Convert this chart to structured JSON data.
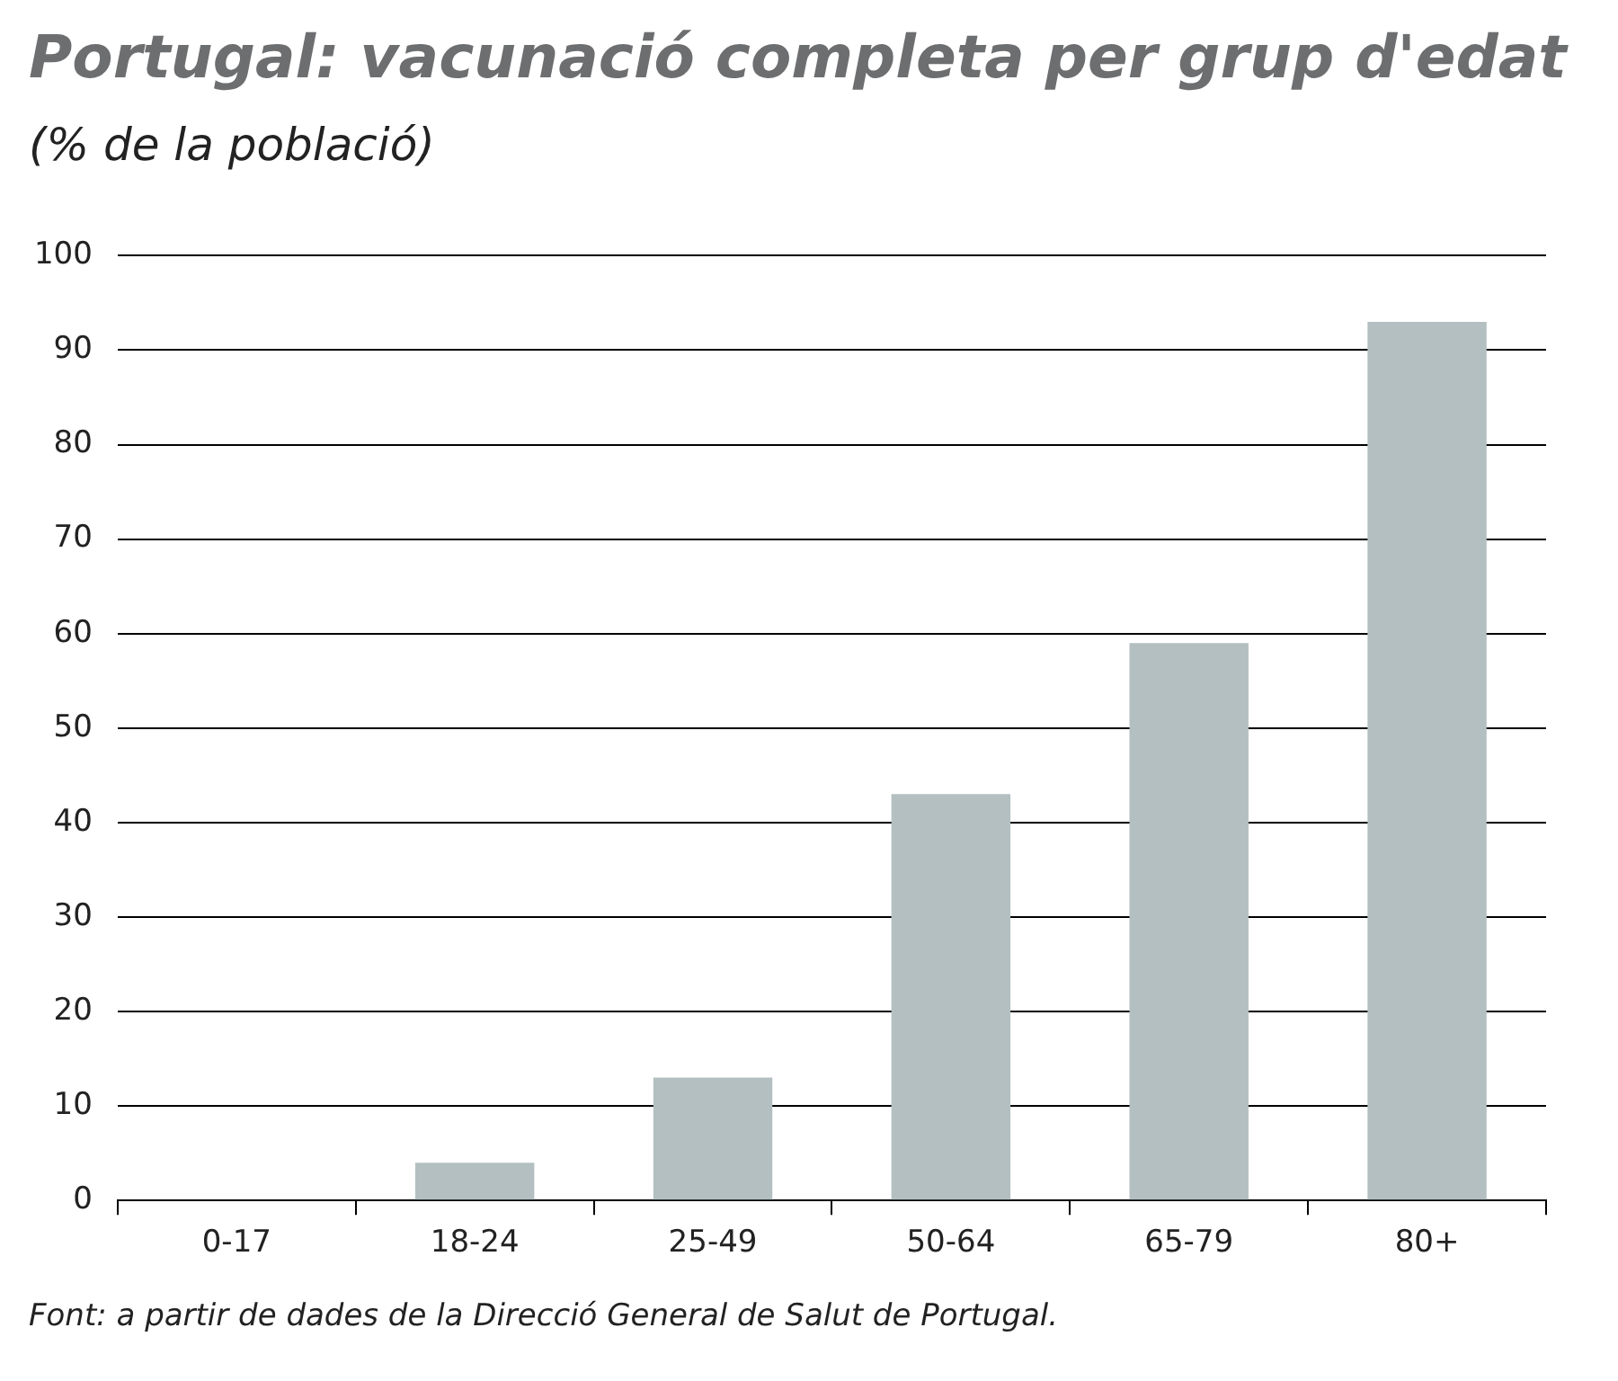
{
  "chart_data": {
    "type": "bar",
    "title": "Portugal: vacunació completa per grup d'edat",
    "subtitle": "(% de la població)",
    "categories": [
      "0-17",
      "18-24",
      "25-49",
      "50-64",
      "65-79",
      "80+"
    ],
    "values": [
      0,
      4,
      13,
      43,
      59,
      93
    ],
    "color": "#b3bfc1",
    "ylim": [
      0,
      100
    ],
    "yticks": [
      0,
      10,
      20,
      30,
      40,
      50,
      60,
      70,
      80,
      90,
      100
    ],
    "grid": "y",
    "annotations": [
      "Font: a partir de dades de la Direcció General de Salut de Portugal."
    ]
  }
}
